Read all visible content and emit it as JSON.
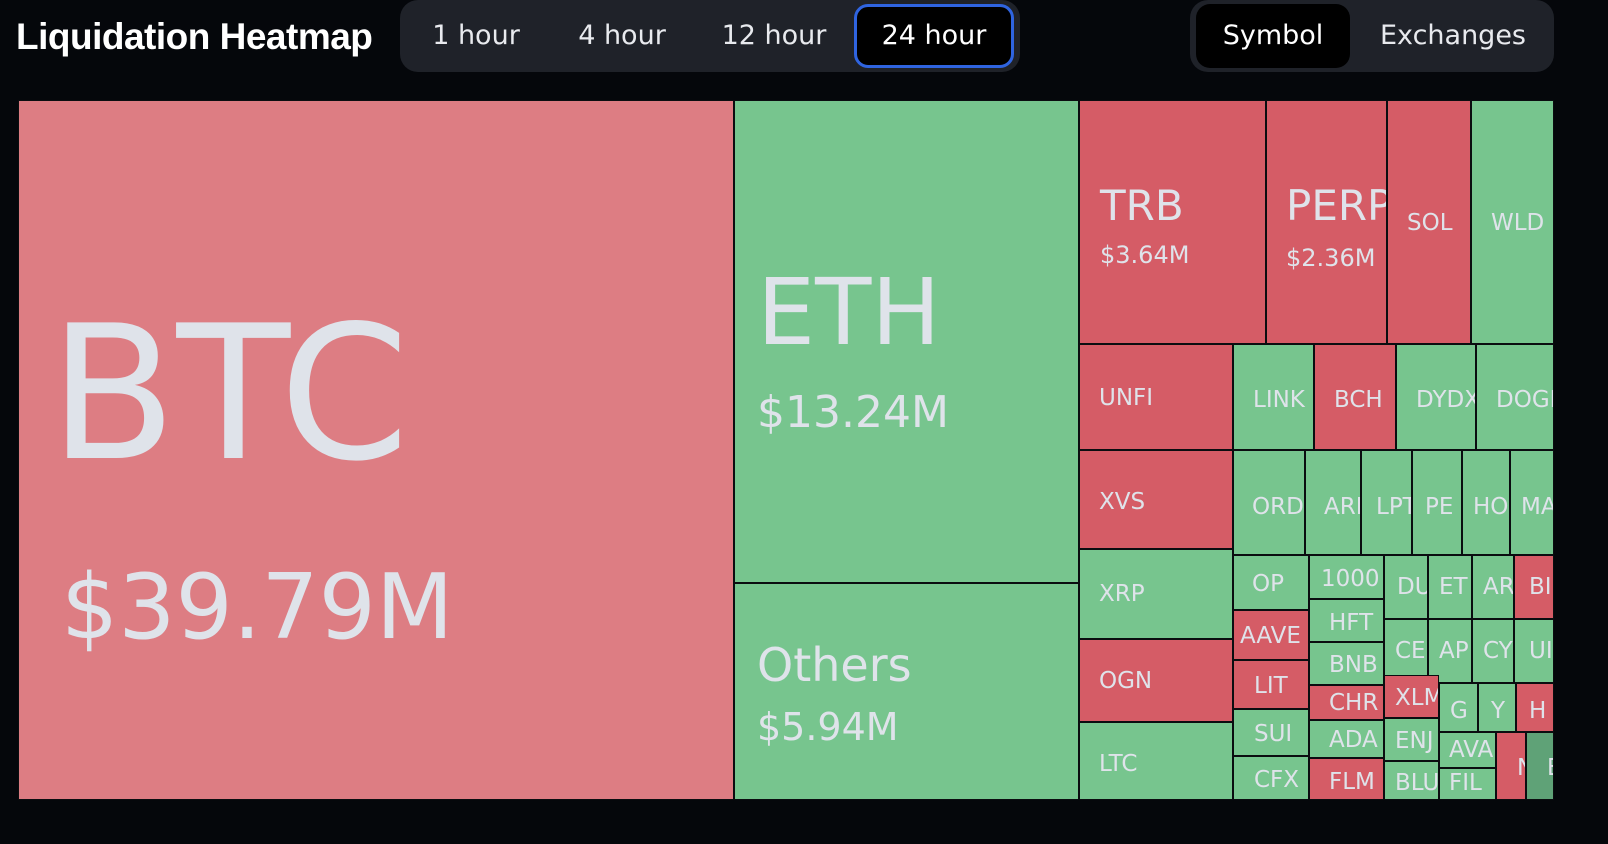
{
  "header": {
    "title": "Liquidation Heatmap",
    "range_tabs": [
      "1 hour",
      "4 hour",
      "12 hour",
      "24 hour"
    ],
    "active_range": "24 hour",
    "view_tabs": [
      "Symbol",
      "Exchanges"
    ],
    "active_view": "Symbol"
  },
  "colors": {
    "long_liquidation_red": "#d55c66",
    "large_red": "#dd7d83",
    "short_liquidation_green": "#77c58e",
    "accent_blue": "#2f64e0",
    "background": "#05070b"
  },
  "heatmap": {
    "cells": [
      {
        "symbol": "BTC",
        "value": "$39.79M"
      },
      {
        "symbol": "ETH",
        "value": "$13.24M"
      },
      {
        "symbol": "Others",
        "value": "$5.94M"
      },
      {
        "symbol": "TRB",
        "value": "$3.64M"
      },
      {
        "symbol": "PERP",
        "value": "$2.36M"
      },
      {
        "symbol": "SOL"
      },
      {
        "symbol": "WLD"
      },
      {
        "symbol": "UNFI"
      },
      {
        "symbol": "LINK"
      },
      {
        "symbol": "BCH"
      },
      {
        "symbol": "DYDX"
      },
      {
        "symbol": "DOGE"
      },
      {
        "symbol": "XVS"
      },
      {
        "symbol": "ORDI"
      },
      {
        "symbol": "ARI"
      },
      {
        "symbol": "LPT"
      },
      {
        "symbol": "PE"
      },
      {
        "symbol": "HO"
      },
      {
        "symbol": "MA"
      },
      {
        "symbol": "XRP"
      },
      {
        "symbol": "OP"
      },
      {
        "symbol": "1000"
      },
      {
        "symbol": "DU"
      },
      {
        "symbol": "ET"
      },
      {
        "symbol": "AR"
      },
      {
        "symbol": "BI"
      },
      {
        "symbol": "AAVE"
      },
      {
        "symbol": "HFT"
      },
      {
        "symbol": "CE"
      },
      {
        "symbol": "AP"
      },
      {
        "symbol": "CY"
      },
      {
        "symbol": "UI"
      },
      {
        "symbol": "OGN"
      },
      {
        "symbol": "LIT"
      },
      {
        "symbol": "BNB"
      },
      {
        "symbol": "CHR"
      },
      {
        "symbol": "XLM"
      },
      {
        "symbol": "G"
      },
      {
        "symbol": "Y"
      },
      {
        "symbol": "H"
      },
      {
        "symbol": "SUI"
      },
      {
        "symbol": "ADA"
      },
      {
        "symbol": "ENJ"
      },
      {
        "symbol": "AVA"
      },
      {
        "symbol": "N"
      },
      {
        "symbol": "E"
      },
      {
        "symbol": "LTC"
      },
      {
        "symbol": "CFX"
      },
      {
        "symbol": "FLM"
      },
      {
        "symbol": "BLU"
      },
      {
        "symbol": "FIL"
      }
    ]
  }
}
